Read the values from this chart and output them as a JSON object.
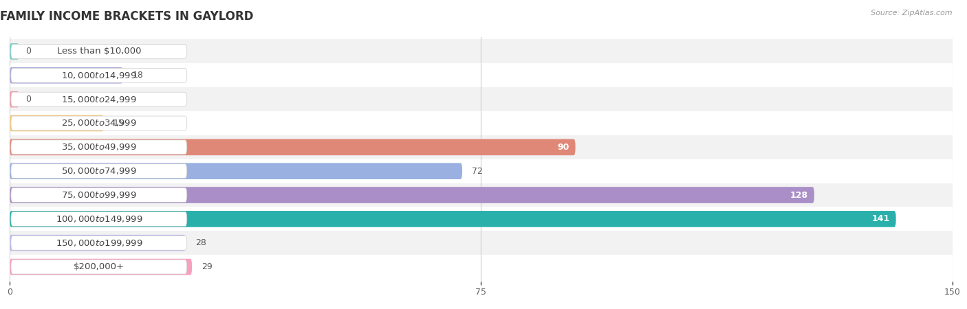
{
  "title": "FAMILY INCOME BRACKETS IN GAYLORD",
  "source": "Source: ZipAtlas.com",
  "categories": [
    "Less than $10,000",
    "$10,000 to $14,999",
    "$15,000 to $24,999",
    "$25,000 to $34,999",
    "$35,000 to $49,999",
    "$50,000 to $74,999",
    "$75,000 to $99,999",
    "$100,000 to $149,999",
    "$150,000 to $199,999",
    "$200,000+"
  ],
  "values": [
    0,
    18,
    0,
    15,
    90,
    72,
    128,
    141,
    28,
    29
  ],
  "bar_colors": [
    "#72ccc8",
    "#aaaadd",
    "#f09aaa",
    "#f5c87a",
    "#e08878",
    "#9ab0e0",
    "#aa8ec8",
    "#2ab0aa",
    "#b8b8ee",
    "#f8a0c0"
  ],
  "xlim": [
    0,
    150
  ],
  "xticks": [
    0,
    75,
    150
  ],
  "background_color": "#ffffff",
  "row_bg_color": "#f2f2f2",
  "title_fontsize": 12,
  "label_fontsize": 9.5,
  "value_fontsize": 9,
  "bar_height": 0.68
}
